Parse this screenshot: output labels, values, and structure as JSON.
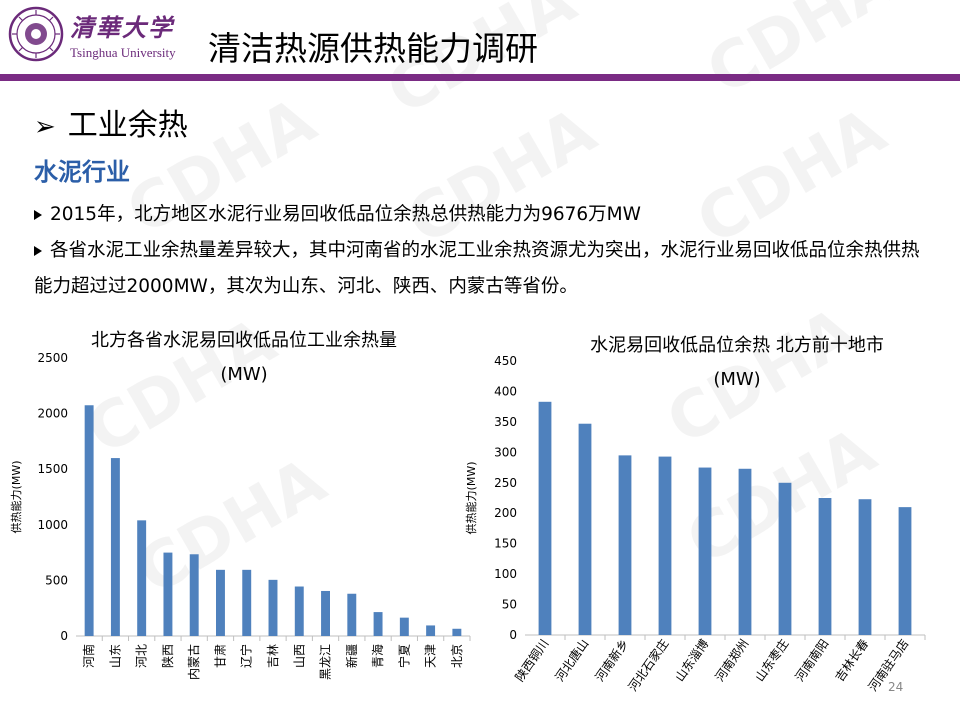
{
  "header": {
    "logo_cn": "清華大学",
    "logo_en": "Tsinghua University",
    "title": "清洁热源供热能力调研",
    "accent_color": "#7a2b84"
  },
  "section": {
    "arrow_icon": "arrow-right-icon",
    "title": "工业余热",
    "subhead": "水泥行业",
    "bullets": [
      "2015年，北方地区水泥行业易回收低品位余热总供热能力为9676万MW",
      "各省水泥工业余热量差异较大，其中河南省的水泥工业余热资源尤为突出，水泥行业易回收低品位余热供热能力超过过2000MW，其次为山东、河北、陕西、内蒙古等省份。"
    ]
  },
  "watermark": "CDHA",
  "page_number": "24",
  "chart_data": [
    {
      "type": "bar",
      "title": "北方各省水泥易回收低品位工业余热量",
      "subtitle": "(MW)",
      "xlabel": "",
      "ylabel": "供热能力(MW)",
      "ylim": [
        0,
        2500
      ],
      "yticks": [
        0,
        500,
        1000,
        1500,
        2000,
        2500
      ],
      "grid": false,
      "bar_color": "#4f81bd",
      "categories": [
        "河南",
        "山东",
        "河北",
        "陕西",
        "内蒙古",
        "甘肃",
        "辽宁",
        "吉林",
        "山西",
        "黑龙江",
        "新疆",
        "青海",
        "宁夏",
        "天津",
        "北京"
      ],
      "values": [
        2075,
        1600,
        1040,
        750,
        735,
        595,
        595,
        505,
        445,
        405,
        380,
        215,
        165,
        95,
        65
      ]
    },
    {
      "type": "bar",
      "title": "水泥易回收低品位余热  北方前十地市",
      "subtitle": "(MW)",
      "xlabel": "",
      "ylabel": "供热能力(MW)",
      "ylim": [
        0,
        450
      ],
      "yticks": [
        0,
        50,
        100,
        150,
        200,
        250,
        300,
        350,
        400,
        450
      ],
      "grid": false,
      "bar_color": "#4f81bd",
      "categories": [
        "陕西铜川",
        "河北唐山",
        "河南新乡",
        "河北石家庄",
        "山东淄博",
        "河南郑州",
        "山东枣庄",
        "河南南阳",
        "吉林长春",
        "河南驻马店"
      ],
      "values": [
        383,
        347,
        295,
        293,
        275,
        273,
        250,
        225,
        223,
        210
      ]
    }
  ]
}
